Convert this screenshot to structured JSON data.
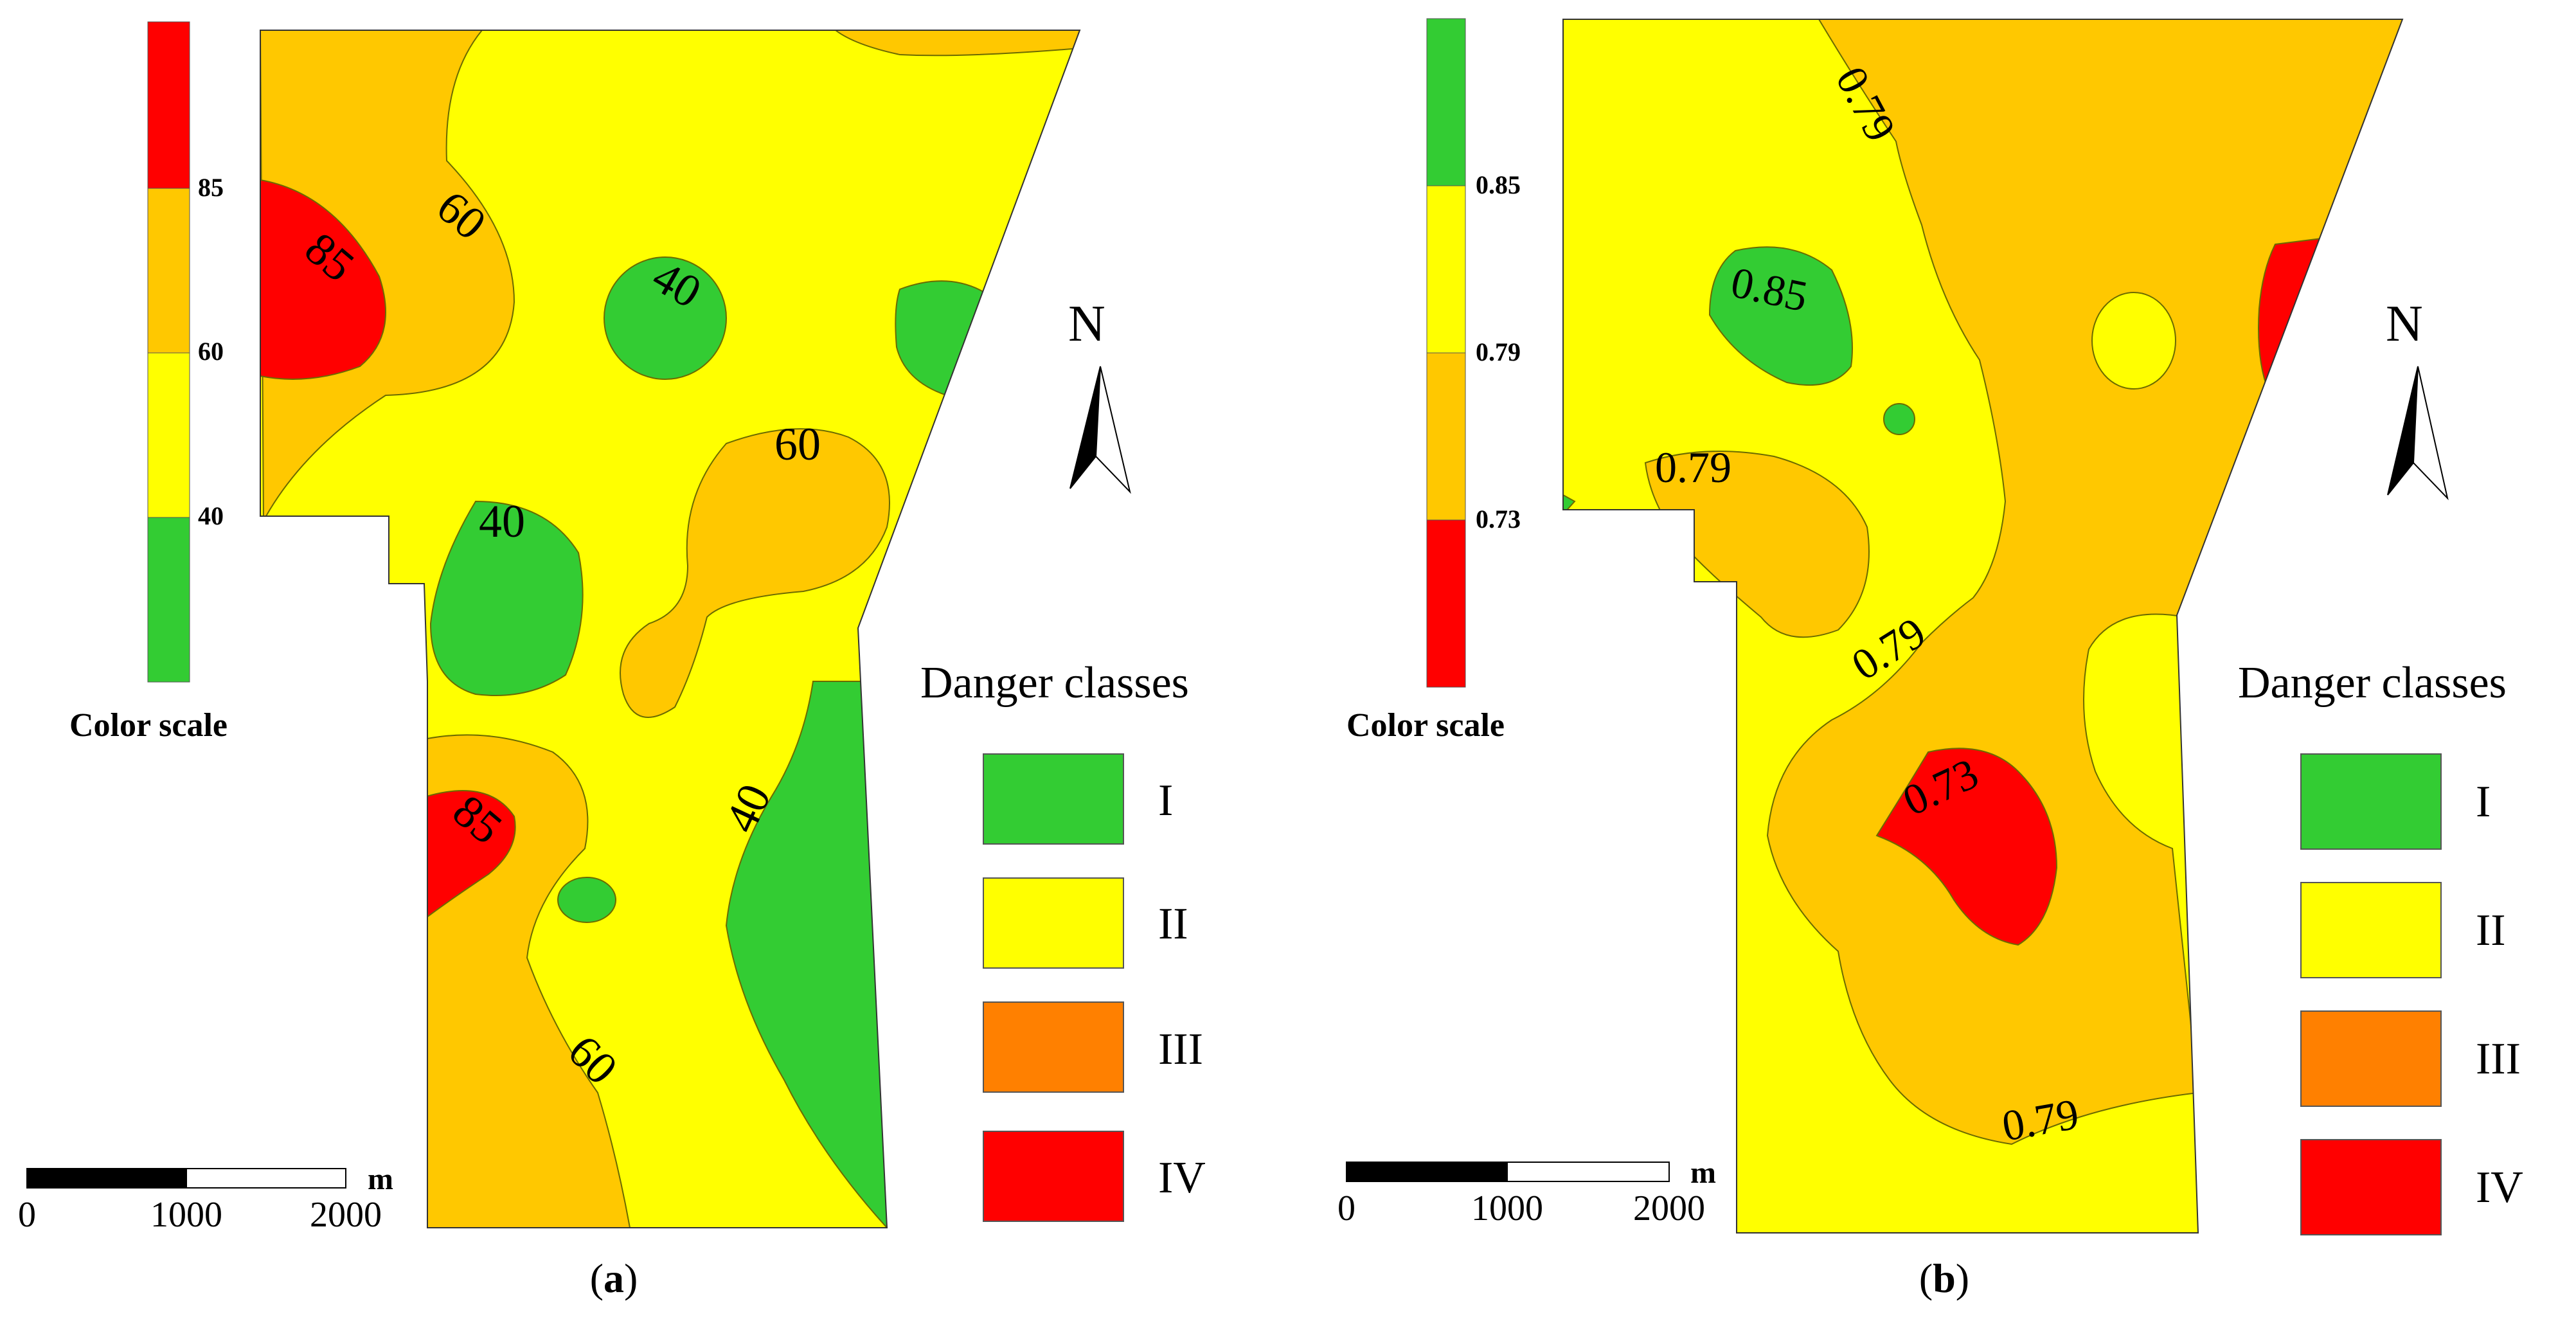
{
  "colors": {
    "class_I": "#33cc33",
    "class_II": "#ffff00",
    "class_III": "#ff8000",
    "class_IV": "#ff0000",
    "contour_band": "#ffc800"
  },
  "panel_a": {
    "caption_letter": "a",
    "caption_open": "(",
    "caption_close": ")",
    "color_scale": {
      "title": "Color scale",
      "breaks": [
        "85",
        "60",
        "40"
      ],
      "bands_top_to_bottom": [
        "class_IV",
        "contour_band",
        "class_II",
        "class_I"
      ]
    },
    "contour_labels": [
      "85",
      "60",
      "40",
      "40",
      "60",
      "85",
      "60",
      "40"
    ],
    "north": "N",
    "legend_title": "Danger classes",
    "legend_items": [
      "I",
      "II",
      "III",
      "IV"
    ],
    "scale_bar": {
      "unit": "m",
      "ticks": [
        "0",
        "1000",
        "2000"
      ]
    }
  },
  "panel_b": {
    "caption_letter": "b",
    "caption_open": "(",
    "caption_close": ")",
    "color_scale": {
      "title": "Color scale",
      "breaks": [
        "0.85",
        "0.79",
        "0.73"
      ],
      "bands_top_to_bottom": [
        "class_I",
        "class_II",
        "contour_band",
        "class_IV"
      ]
    },
    "contour_labels": [
      "0.79",
      "0.85",
      "0.79",
      "0.79",
      "0.73",
      "0.79"
    ],
    "north": "N",
    "legend_title": "Danger classes",
    "legend_items": [
      "I",
      "II",
      "III",
      "IV"
    ],
    "scale_bar": {
      "unit": "m",
      "ticks": [
        "0",
        "1000",
        "2000"
      ]
    }
  }
}
